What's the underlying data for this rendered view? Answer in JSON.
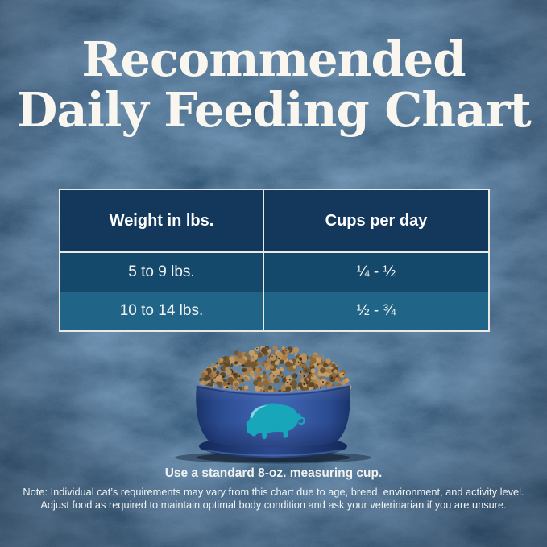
{
  "title": {
    "line1": "Recommended",
    "line2": "Daily Feeding Chart"
  },
  "chart_data": {
    "type": "table",
    "title": "Recommended Daily Feeding Chart",
    "columns": [
      "Weight in lbs.",
      "Cups per day"
    ],
    "rows": [
      [
        "5 to 9 lbs.",
        "¼ - ½"
      ],
      [
        "10 to 14 lbs.",
        "½ - ¾"
      ]
    ]
  },
  "caption": "Use a standard 8-oz. measuring cup.",
  "notes": {
    "line1": "Note: Individual cat’s requirements may vary from this chart due to age, breed, environment, and activity level.",
    "line2": "Adjust food as required to maintain optimal body condition and ask your veterinarian if you are unsure."
  },
  "illustration": {
    "icon": "bison-logo-icon",
    "alt": "blue pet bowl filled with kibble"
  },
  "colors": {
    "background": "#143150",
    "table_header_bg": "#14375c",
    "table_row1_bg": "#15496b",
    "table_row2_bg": "#206587",
    "table_border": "#e9eae5",
    "title_text": "#f8f6ef",
    "text": "#f1f3f2",
    "bowl_blue": "#38589f",
    "bowl_dark": "#1a336a",
    "bison_teal": "#18a6ba",
    "kibble_palette": [
      "#a8804d",
      "#8f6a3c",
      "#b8905c",
      "#74562f",
      "#5f472a",
      "#c39b66",
      "#382a18"
    ]
  }
}
